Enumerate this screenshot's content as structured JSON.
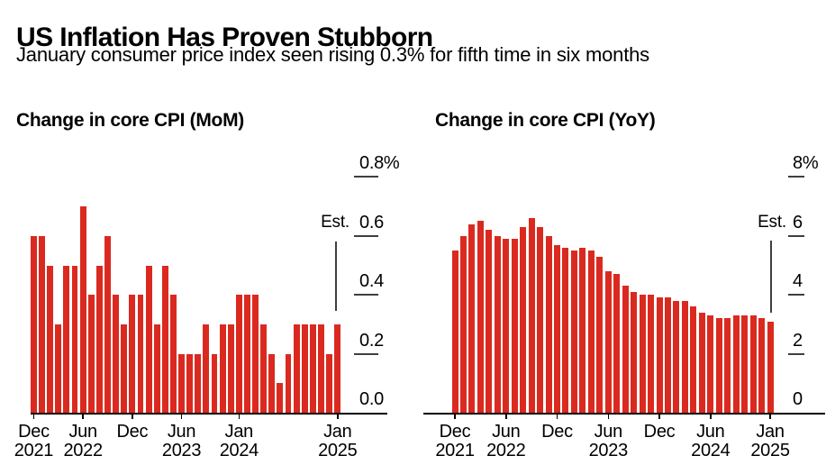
{
  "header": {
    "title": "US Inflation Has Proven Stubborn",
    "subtitle": "January consumer price index seen rising 0.3% for fifth time in six months"
  },
  "colors": {
    "bar": "#da2a20",
    "text": "#000000",
    "axis_line": "#000000",
    "tick_line": "#3f3f3f",
    "estimate_line": "#3f3f3f",
    "background": "#ffffff"
  },
  "chart_data": [
    {
      "type": "bar",
      "title": "Change in core CPI (MoM)",
      "xlabel": "",
      "ylabel": "",
      "unit": "%",
      "ylim": [
        0,
        0.8
      ],
      "grid": false,
      "legend": "none",
      "axis_side": "right",
      "yticks": [
        {
          "value": 0.8,
          "label": "0.8%"
        },
        {
          "value": 0.6,
          "label": "0.6"
        },
        {
          "value": 0.4,
          "label": "0.4"
        },
        {
          "value": 0.2,
          "label": "0.2"
        },
        {
          "value": 0.0,
          "label": "0.0"
        }
      ],
      "categories": [
        "Dec 2021",
        "Jan 2022",
        "Feb 2022",
        "Mar 2022",
        "Apr 2022",
        "May 2022",
        "Jun 2022",
        "Jul 2022",
        "Aug 2022",
        "Sep 2022",
        "Oct 2022",
        "Nov 2022",
        "Dec 2022",
        "Jan 2023",
        "Feb 2023",
        "Mar 2023",
        "Apr 2023",
        "May 2023",
        "Jun 2023",
        "Jul 2023",
        "Aug 2023",
        "Sep 2023",
        "Oct 2023",
        "Nov 2023",
        "Dec 2023",
        "Jan 2024",
        "Feb 2024",
        "Mar 2024",
        "Apr 2024",
        "May 2024",
        "Jun 2024",
        "Jul 2024",
        "Aug 2024",
        "Sep 2024",
        "Oct 2024",
        "Nov 2024",
        "Dec 2024",
        "Jan 2025"
      ],
      "values": [
        0.6,
        0.6,
        0.5,
        0.3,
        0.5,
        0.5,
        0.7,
        0.4,
        0.5,
        0.6,
        0.4,
        0.3,
        0.4,
        0.4,
        0.5,
        0.3,
        0.5,
        0.4,
        0.2,
        0.2,
        0.2,
        0.3,
        0.2,
        0.3,
        0.3,
        0.4,
        0.4,
        0.4,
        0.3,
        0.2,
        0.1,
        0.2,
        0.3,
        0.3,
        0.3,
        0.3,
        0.2,
        0.3
      ],
      "xticks": [
        {
          "index": 0,
          "lines": [
            "Dec",
            "2021"
          ]
        },
        {
          "index": 6,
          "lines": [
            "Jun",
            "2022"
          ]
        },
        {
          "index": 12,
          "lines": [
            "Dec"
          ]
        },
        {
          "index": 18,
          "lines": [
            "Jun",
            "2023"
          ]
        },
        {
          "index": 25,
          "lines": [
            "Jan",
            "2024"
          ]
        },
        {
          "index": 37,
          "lines": [
            "Jan",
            "2025"
          ]
        }
      ],
      "estimate": {
        "index": 37,
        "label": "Est.",
        "value": 0.3
      }
    },
    {
      "type": "bar",
      "title": "Change in core CPI (YoY)",
      "xlabel": "",
      "ylabel": "",
      "unit": "%",
      "ylim": [
        0,
        8
      ],
      "grid": false,
      "legend": "none",
      "axis_side": "right",
      "yticks": [
        {
          "value": 8,
          "label": "8%"
        },
        {
          "value": 6,
          "label": "6"
        },
        {
          "value": 4,
          "label": "4"
        },
        {
          "value": 2,
          "label": "2"
        },
        {
          "value": 0,
          "label": "0"
        }
      ],
      "categories": [
        "Dec 2021",
        "Jan 2022",
        "Feb 2022",
        "Mar 2022",
        "Apr 2022",
        "May 2022",
        "Jun 2022",
        "Jul 2022",
        "Aug 2022",
        "Sep 2022",
        "Oct 2022",
        "Nov 2022",
        "Dec 2022",
        "Jan 2023",
        "Feb 2023",
        "Mar 2023",
        "Apr 2023",
        "May 2023",
        "Jun 2023",
        "Jul 2023",
        "Aug 2023",
        "Sep 2023",
        "Oct 2023",
        "Nov 2023",
        "Dec 2023",
        "Jan 2024",
        "Feb 2024",
        "Mar 2024",
        "Apr 2024",
        "May 2024",
        "Jun 2024",
        "Jul 2024",
        "Aug 2024",
        "Sep 2024",
        "Oct 2024",
        "Nov 2024",
        "Dec 2024",
        "Jan 2025"
      ],
      "values": [
        5.5,
        6.0,
        6.4,
        6.5,
        6.2,
        6.0,
        5.9,
        5.9,
        6.3,
        6.6,
        6.3,
        6.0,
        5.7,
        5.6,
        5.5,
        5.6,
        5.5,
        5.3,
        4.8,
        4.7,
        4.3,
        4.1,
        4.0,
        4.0,
        3.9,
        3.9,
        3.8,
        3.8,
        3.6,
        3.4,
        3.3,
        3.2,
        3.2,
        3.3,
        3.3,
        3.3,
        3.2,
        3.1
      ],
      "xticks": [
        {
          "index": 0,
          "lines": [
            "Dec",
            "2021"
          ]
        },
        {
          "index": 6,
          "lines": [
            "Jun",
            "2022"
          ]
        },
        {
          "index": 12,
          "lines": [
            "Dec"
          ]
        },
        {
          "index": 18,
          "lines": [
            "Jun",
            "2023"
          ]
        },
        {
          "index": 24,
          "lines": [
            "Dec"
          ]
        },
        {
          "index": 30,
          "lines": [
            "Jun",
            "2024"
          ]
        },
        {
          "index": 37,
          "lines": [
            "Jan",
            "2025"
          ]
        }
      ],
      "estimate": {
        "index": 37,
        "label": "Est.",
        "value": 3.1
      }
    }
  ]
}
